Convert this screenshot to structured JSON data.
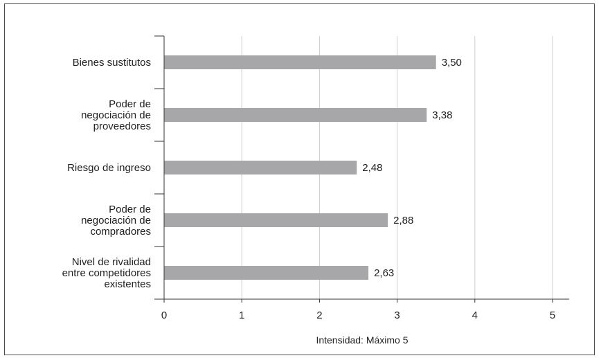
{
  "chart_data": {
    "type": "bar",
    "orientation": "horizontal",
    "categories": [
      [
        "Bienes sustitutos"
      ],
      [
        "Poder de",
        "negociación de",
        "proveedores"
      ],
      [
        "Riesgo de ingreso"
      ],
      [
        "Poder de",
        "negociación de",
        "compradores"
      ],
      [
        "Nivel de rivalidad",
        "entre competidores",
        "existentes"
      ]
    ],
    "values": [
      3.5,
      3.38,
      2.48,
      2.88,
      2.63
    ],
    "value_labels": [
      "3,50",
      "3,38",
      "2,48",
      "2,88",
      "2,63"
    ],
    "xlim": [
      0,
      5
    ],
    "xticks": [
      "0",
      "1",
      "2",
      "3",
      "4",
      "5"
    ],
    "xlabel": "Intensidad: Máximo 5",
    "grid": "vertical",
    "colors": {
      "bar": "#a7a6a9",
      "grid": "#cfcfcf",
      "axis": "#333333"
    }
  }
}
